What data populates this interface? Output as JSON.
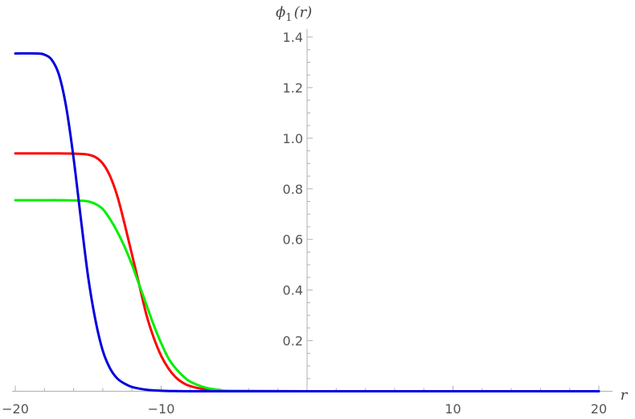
{
  "chart_data": {
    "type": "line",
    "title": "",
    "xlabel": "r",
    "ylabel": "ϕ₁(r)",
    "ylabel_parts": {
      "symbol": "ϕ",
      "sub": "1",
      "arg": "(r)"
    },
    "xlim": [
      -20,
      20
    ],
    "ylim": [
      0,
      1.4
    ],
    "x_ticks": [
      -20,
      -10,
      10,
      20
    ],
    "x_tick_labels": [
      "−20",
      "−10",
      "10",
      "20"
    ],
    "y_ticks": [
      0.2,
      0.4,
      0.6,
      0.8,
      1.0,
      1.2,
      1.4
    ],
    "y_tick_labels": [
      "0.2",
      "0.4",
      "0.6",
      "0.8",
      "1.0",
      "1.2",
      "1.4"
    ],
    "grid": false,
    "legend": "none",
    "series": [
      {
        "color": "#ff0000",
        "x": [
          -20,
          -18,
          -17,
          -16,
          -15.5,
          -15,
          -14.5,
          -14,
          -13.5,
          -13,
          -12.5,
          -12,
          -11.5,
          -11,
          -10.5,
          -10,
          -9.5,
          -9,
          -8.5,
          -8,
          -7,
          -6,
          -5,
          0,
          10,
          20
        ],
        "y": [
          0.94,
          0.94,
          0.94,
          0.939,
          0.938,
          0.935,
          0.925,
          0.9,
          0.85,
          0.77,
          0.66,
          0.54,
          0.42,
          0.3,
          0.21,
          0.14,
          0.09,
          0.055,
          0.033,
          0.02,
          0.007,
          0.002,
          0.0005,
          0,
          0,
          0
        ]
      },
      {
        "color": "#00ee00",
        "x": [
          -20,
          -18,
          -17,
          -16,
          -15.5,
          -15,
          -14.5,
          -14,
          -13.5,
          -13,
          -12.5,
          -12,
          -11.5,
          -11,
          -10.5,
          -10,
          -9.5,
          -9,
          -8.5,
          -8,
          -7,
          -6,
          -5,
          0,
          10,
          20
        ],
        "y": [
          0.755,
          0.755,
          0.755,
          0.754,
          0.753,
          0.75,
          0.74,
          0.72,
          0.68,
          0.63,
          0.57,
          0.5,
          0.42,
          0.34,
          0.26,
          0.19,
          0.13,
          0.09,
          0.06,
          0.038,
          0.015,
          0.005,
          0.0015,
          0,
          0,
          0
        ]
      },
      {
        "color": "#0000dd",
        "x": [
          -20,
          -18.5,
          -18,
          -17.5,
          -17,
          -16.5,
          -16,
          -15.5,
          -15,
          -14.5,
          -14,
          -13.5,
          -13,
          -12.5,
          -12,
          -11,
          -10,
          -9,
          -8,
          -5,
          0,
          10,
          20
        ],
        "y": [
          1.335,
          1.335,
          1.33,
          1.31,
          1.25,
          1.12,
          0.92,
          0.68,
          0.45,
          0.28,
          0.16,
          0.09,
          0.05,
          0.03,
          0.017,
          0.006,
          0.002,
          0.0006,
          0.0002,
          0,
          0,
          0,
          0
        ]
      }
    ]
  }
}
